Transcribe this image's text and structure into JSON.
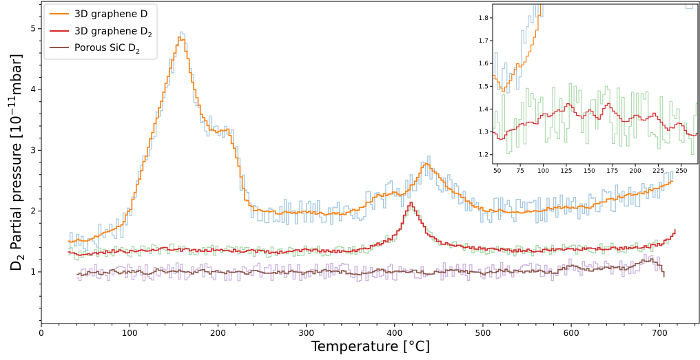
{
  "chart_data": [
    {
      "type": "line",
      "xlabel": "Temperature [°C]",
      "ylabel_main": "D",
      "ylabel_sub": "2",
      "ylabel_rest": " Partial pressure [10",
      "ylabel_sup": "−11",
      "ylabel_unit": "mbar]",
      "xlim": [
        0,
        745
      ],
      "ylim": [
        0.15,
        5.45
      ],
      "xticks": [
        0,
        100,
        200,
        300,
        400,
        500,
        600,
        700
      ],
      "yticks": [
        1,
        2,
        3,
        4,
        5
      ],
      "grid": false,
      "legend_position": "top-left",
      "series": [
        {
          "name": "3D graphene D",
          "legend_main": "3D graphene D",
          "legend_sub": "",
          "color": "#ff7f0e",
          "raw_color": "#a6c8e2",
          "x": [
            30,
            40,
            50,
            60,
            70,
            80,
            90,
            100,
            110,
            120,
            130,
            140,
            150,
            155,
            160,
            165,
            170,
            180,
            190,
            200,
            210,
            220,
            230,
            240,
            250,
            260,
            280,
            300,
            320,
            340,
            360,
            380,
            400,
            410,
            420,
            430,
            435,
            440,
            450,
            460,
            470,
            480,
            490,
            500,
            520,
            540,
            560,
            580,
            600,
            620,
            640,
            660,
            680,
            700,
            715
          ],
          "y": [
            1.5,
            1.52,
            1.5,
            1.58,
            1.65,
            1.7,
            1.78,
            2.05,
            2.55,
            3.05,
            3.55,
            4.1,
            4.6,
            4.85,
            4.8,
            4.5,
            4.1,
            3.6,
            3.35,
            3.3,
            3.35,
            2.9,
            2.2,
            2.02,
            2.0,
            1.98,
            1.97,
            1.98,
            1.96,
            1.95,
            2.05,
            2.25,
            2.3,
            2.27,
            2.45,
            2.7,
            2.78,
            2.72,
            2.55,
            2.38,
            2.28,
            2.18,
            2.08,
            2.02,
            2.0,
            1.98,
            2.0,
            2.05,
            2.07,
            2.07,
            2.18,
            2.25,
            2.3,
            2.4,
            2.5
          ]
        },
        {
          "name": "3D graphene D2",
          "legend_main": "3D graphene D",
          "legend_sub": "2",
          "color": "#d62728",
          "raw_color": "#a8d8a8",
          "x": [
            30,
            40,
            60,
            80,
            100,
            120,
            140,
            160,
            180,
            200,
            220,
            240,
            260,
            280,
            300,
            320,
            340,
            360,
            380,
            395,
            405,
            412,
            418,
            425,
            435,
            450,
            470,
            500,
            530,
            560,
            600,
            640,
            680,
            700,
            710,
            718
          ],
          "y": [
            1.32,
            1.28,
            1.3,
            1.34,
            1.33,
            1.36,
            1.38,
            1.36,
            1.35,
            1.36,
            1.35,
            1.34,
            1.32,
            1.33,
            1.36,
            1.34,
            1.33,
            1.36,
            1.45,
            1.55,
            1.7,
            2.0,
            2.15,
            1.95,
            1.65,
            1.48,
            1.42,
            1.38,
            1.35,
            1.35,
            1.37,
            1.38,
            1.4,
            1.45,
            1.55,
            1.7
          ]
        },
        {
          "name": "Porous SiC D2",
          "legend_main": "Porous SiC D",
          "legend_sub": "2",
          "color": "#8c564b",
          "raw_color": "#cdb5e0",
          "x": [
            40,
            50,
            60,
            70,
            80,
            90,
            100,
            110,
            120,
            130,
            140,
            150,
            160,
            170,
            180,
            190,
            200,
            210,
            220,
            230,
            240,
            260,
            280,
            300,
            320,
            340,
            360,
            380,
            400,
            420,
            440,
            460,
            480,
            500,
            520,
            540,
            560,
            580,
            600,
            620,
            640,
            660,
            680,
            690,
            700,
            705
          ],
          "y": [
            0.95,
            0.98,
            1.0,
            0.97,
            1.02,
            0.98,
            1.01,
            1.0,
            0.97,
            1.03,
            0.99,
            1.02,
            1.0,
            0.96,
            1.04,
            0.98,
            1.01,
            0.99,
            1.0,
            0.97,
            1.02,
            0.99,
            1.0,
            0.98,
            1.02,
            1.0,
            0.97,
            1.03,
            0.99,
            1.01,
            0.98,
            1.02,
            1.0,
            0.97,
            1.03,
            1.0,
            1.02,
            0.98,
            1.12,
            1.02,
            1.08,
            1.05,
            1.18,
            1.2,
            1.1,
            0.93
          ]
        }
      ]
    },
    {
      "type": "line",
      "role": "inset",
      "xlim": [
        45,
        268
      ],
      "ylim": [
        1.16,
        1.86
      ],
      "xticks": [
        50,
        75,
        100,
        125,
        150,
        175,
        200,
        225,
        250
      ],
      "yticks": [
        1.2,
        1.3,
        1.4,
        1.5,
        1.6,
        1.7,
        1.8
      ],
      "ytick_labels": [
        "1.2",
        "1.3",
        "1.4",
        "1.5",
        "1.6",
        "1.7",
        "1.8"
      ],
      "series": [
        {
          "color": "#ff7f0e",
          "raw_color": "#a6c8e2",
          "x": [
            45,
            50,
            55,
            58,
            62,
            66,
            70,
            75,
            80,
            85,
            88,
            92,
            95,
            97
          ],
          "y": [
            1.55,
            1.52,
            1.47,
            1.5,
            1.52,
            1.55,
            1.6,
            1.58,
            1.62,
            1.66,
            1.7,
            1.75,
            1.82,
            1.87
          ]
        },
        {
          "color": "#d62728",
          "raw_color": "#a8d8a8",
          "x": [
            45,
            50,
            55,
            60,
            65,
            70,
            75,
            80,
            85,
            90,
            95,
            100,
            105,
            110,
            115,
            120,
            125,
            130,
            135,
            140,
            145,
            150,
            155,
            160,
            165,
            170,
            175,
            180,
            185,
            190,
            195,
            200,
            205,
            210,
            215,
            220,
            225,
            230,
            235,
            240,
            245,
            250,
            255,
            260,
            268
          ],
          "y": [
            1.3,
            1.27,
            1.27,
            1.3,
            1.31,
            1.32,
            1.34,
            1.33,
            1.35,
            1.33,
            1.36,
            1.38,
            1.37,
            1.38,
            1.4,
            1.39,
            1.42,
            1.41,
            1.38,
            1.36,
            1.38,
            1.4,
            1.37,
            1.36,
            1.41,
            1.42,
            1.39,
            1.37,
            1.35,
            1.35,
            1.36,
            1.38,
            1.36,
            1.35,
            1.37,
            1.38,
            1.35,
            1.33,
            1.31,
            1.32,
            1.34,
            1.33,
            1.3,
            1.28,
            1.29
          ]
        },
        {
          "color": "#8c564b",
          "raw_color": "#cdb5e0",
          "x": [],
          "y": []
        }
      ]
    }
  ]
}
